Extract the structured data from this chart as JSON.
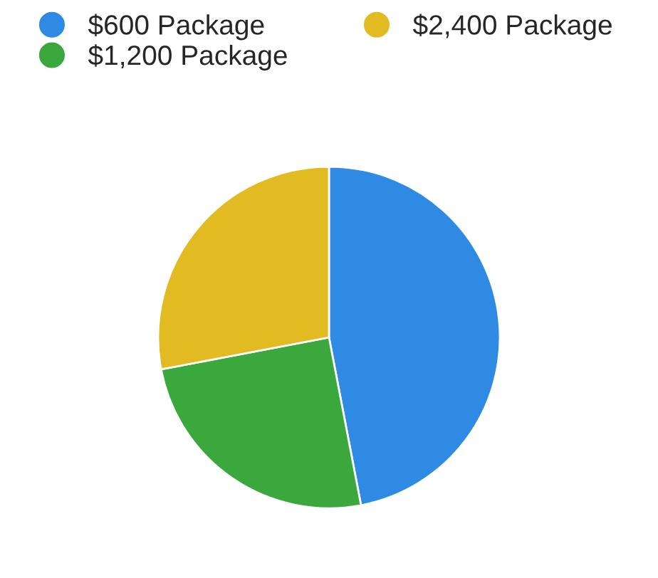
{
  "chart_data": {
    "type": "pie",
    "categories": [
      "$600 Package",
      "$1,200 Package",
      "$2,400 Package"
    ],
    "values": [
      47,
      25,
      28
    ],
    "colors": [
      "#2f8ae4",
      "#3aa83c",
      "#e2bb22"
    ],
    "legend": "top"
  }
}
